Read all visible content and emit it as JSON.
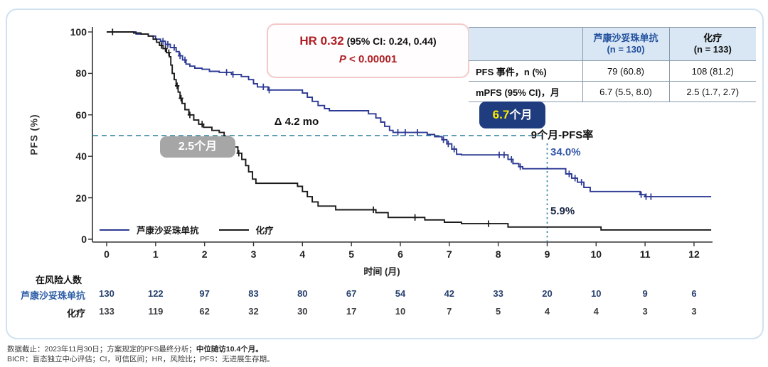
{
  "figure": {
    "hr_box": {
      "hr_label": "HR 0.32",
      "ci_label": "(95% CI: 0.24, 0.44)",
      "p_label": "P",
      "p_value": " < 0.00001"
    },
    "annotations": {
      "delta": "Δ 4.2 mo",
      "median_treatment_value": "6.7",
      "median_treatment_unit": "个月",
      "median_chemo": "2.5个月",
      "nine_month_label": "9个月-PFS率",
      "rate_treatment": "34.0%",
      "rate_chemo": "5.9%"
    }
  },
  "stats_table": {
    "columns": [
      {
        "line1": "芦康沙妥珠单抗",
        "line2": "(n = 130)"
      },
      {
        "line1": "化疗",
        "line2": "(n = 133)"
      }
    ],
    "rows": [
      {
        "label": "PFS 事件，n (%)",
        "values": [
          "79 (60.8)",
          "108 (81.2)"
        ]
      },
      {
        "label": "mPFS (95% CI)，月",
        "values": [
          "6.7 (5.5, 8.0)",
          "2.5 (1.7, 2.7)"
        ]
      }
    ]
  },
  "chart_data": {
    "type": "line",
    "subtype": "kaplan-meier-step",
    "title": "",
    "xlabel": "时间 (月)",
    "ylabel": "PFS (%)",
    "xlim": [
      0,
      12.4
    ],
    "ylim": [
      0,
      100
    ],
    "x_ticks": [
      0,
      1,
      2,
      3,
      4,
      5,
      6,
      7,
      8,
      9,
      10,
      11,
      12
    ],
    "y_ticks": [
      0,
      20,
      40,
      60,
      80,
      100
    ],
    "grid": false,
    "legend_position": "bottom-left-inside",
    "median_reference_pct": 50,
    "nine_month_reference_x": 9,
    "teal_reference_color": "#2a7f9b",
    "legend": [
      {
        "name": "芦康沙妥珠单抗",
        "color": "#2d3a94"
      },
      {
        "name": "化疗",
        "color": "#1a1a1a"
      }
    ],
    "series": [
      {
        "name": "芦康沙妥珠单抗",
        "color": "#2d3a94",
        "median_months": 6.7,
        "rate_at_9mo_pct": 34.0,
        "steps": [
          [
            0,
            100
          ],
          [
            0.6,
            99
          ],
          [
            0.85,
            98
          ],
          [
            1.0,
            96.5
          ],
          [
            1.1,
            95.5
          ],
          [
            1.2,
            94
          ],
          [
            1.3,
            92.5
          ],
          [
            1.42,
            90.5
          ],
          [
            1.48,
            88.5
          ],
          [
            1.55,
            86.5
          ],
          [
            1.62,
            84.5
          ],
          [
            1.7,
            83.5
          ],
          [
            1.8,
            82.5
          ],
          [
            1.95,
            82
          ],
          [
            2.1,
            81
          ],
          [
            2.3,
            80.5
          ],
          [
            2.55,
            79.5
          ],
          [
            2.75,
            78.5
          ],
          [
            2.9,
            77
          ],
          [
            3.0,
            75
          ],
          [
            3.08,
            73.5
          ],
          [
            3.3,
            72
          ],
          [
            4.0,
            70.5
          ],
          [
            4.1,
            68.5
          ],
          [
            4.2,
            66.5
          ],
          [
            4.32,
            64.5
          ],
          [
            4.45,
            63
          ],
          [
            4.55,
            62
          ],
          [
            5.35,
            60.5
          ],
          [
            5.5,
            58.5
          ],
          [
            5.6,
            56.5
          ],
          [
            5.68,
            54.5
          ],
          [
            5.78,
            52.5
          ],
          [
            5.85,
            51.5
          ],
          [
            6.55,
            50.5
          ],
          [
            6.7,
            49.5
          ],
          [
            6.85,
            48
          ],
          [
            6.95,
            46
          ],
          [
            7.05,
            43.5
          ],
          [
            7.15,
            41
          ],
          [
            7.25,
            40.7
          ],
          [
            8.2,
            38.5
          ],
          [
            8.3,
            36.5
          ],
          [
            8.42,
            35
          ],
          [
            8.5,
            34
          ],
          [
            9.38,
            31.5
          ],
          [
            9.5,
            29.5
          ],
          [
            9.62,
            27.5
          ],
          [
            9.75,
            25
          ],
          [
            9.88,
            23
          ],
          [
            10.9,
            21.5
          ],
          [
            11.0,
            20.5
          ]
        ],
        "censor_times": [
          1.15,
          1.25,
          1.38,
          1.5,
          1.6,
          2.45,
          2.58,
          3.2,
          3.32,
          5.95,
          6.1,
          6.35,
          6.88,
          6.98,
          7.1,
          8.02,
          8.12,
          8.27,
          8.45,
          9.45,
          9.57,
          9.7,
          10.92,
          11.02,
          11.12
        ]
      },
      {
        "name": "化疗",
        "color": "#1a1a1a",
        "median_months": 2.5,
        "rate_at_9mo_pct": 5.9,
        "steps": [
          [
            0,
            100
          ],
          [
            0.55,
            99.5
          ],
          [
            0.7,
            99
          ],
          [
            0.85,
            98
          ],
          [
            0.95,
            96.5
          ],
          [
            1.02,
            95
          ],
          [
            1.08,
            93.5
          ],
          [
            1.15,
            92
          ],
          [
            1.22,
            90
          ],
          [
            1.28,
            88
          ],
          [
            1.31,
            84
          ],
          [
            1.34,
            80
          ],
          [
            1.38,
            77
          ],
          [
            1.42,
            74
          ],
          [
            1.46,
            71
          ],
          [
            1.5,
            68
          ],
          [
            1.54,
            65.5
          ],
          [
            1.6,
            62.5
          ],
          [
            1.68,
            60
          ],
          [
            1.78,
            57.5
          ],
          [
            1.88,
            55.5
          ],
          [
            1.98,
            54
          ],
          [
            2.15,
            52.5
          ],
          [
            2.3,
            51.5
          ],
          [
            2.4,
            49.5
          ],
          [
            2.5,
            47.5
          ],
          [
            2.6,
            44.5
          ],
          [
            2.68,
            41.5
          ],
          [
            2.76,
            38.5
          ],
          [
            2.84,
            35.5
          ],
          [
            2.9,
            32.5
          ],
          [
            2.98,
            29
          ],
          [
            3.05,
            27
          ],
          [
            3.9,
            25.5
          ],
          [
            4.0,
            23
          ],
          [
            4.1,
            20.5
          ],
          [
            4.2,
            18
          ],
          [
            4.32,
            16
          ],
          [
            4.68,
            14.2
          ],
          [
            5.5,
            12.8
          ],
          [
            5.75,
            10.5
          ],
          [
            6.5,
            9.3
          ],
          [
            6.9,
            8.2
          ],
          [
            7.25,
            7.5
          ],
          [
            8.2,
            5.9
          ],
          [
            10.1,
            4.5
          ]
        ],
        "censor_times": [
          0.12,
          1.12,
          1.2,
          1.27,
          1.44,
          1.52,
          1.7,
          1.95,
          2.7,
          5.45,
          6.3,
          7.8
        ]
      }
    ]
  },
  "risk_table": {
    "title": "在风险人数",
    "times": [
      0,
      1,
      2,
      3,
      4,
      5,
      6,
      7,
      8,
      9,
      10,
      11,
      12
    ],
    "rows": [
      {
        "label": "芦康沙妥珠单抗",
        "counts": [
          130,
          122,
          97,
          83,
          80,
          67,
          54,
          42,
          33,
          20,
          10,
          9,
          6
        ]
      },
      {
        "label": "化疗",
        "counts": [
          133,
          119,
          62,
          32,
          30,
          17,
          10,
          7,
          5,
          4,
          4,
          3,
          3
        ]
      }
    ]
  },
  "footer": {
    "line1_normal": "数据截止：2023年11月30日；方案规定的PFS最终分析；",
    "line1_bold": "中位随访10.4个月。",
    "line2": "BICR：盲态独立中心评估；CI，可信区间；HR，风险比；PFS：无进展生存期。"
  }
}
